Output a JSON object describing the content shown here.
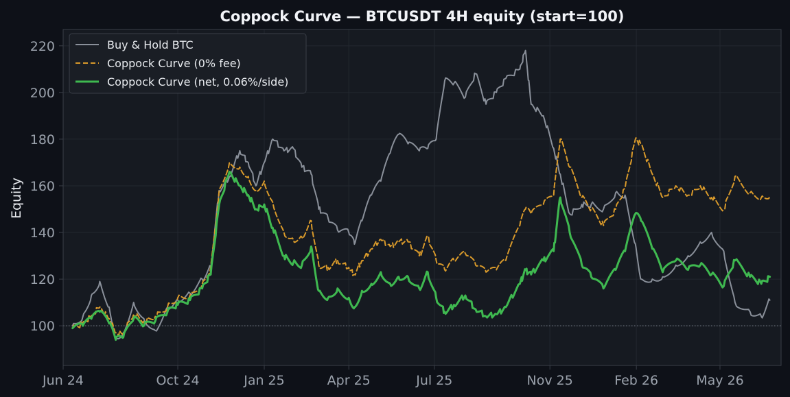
{
  "chart_data": {
    "type": "line",
    "title": "Coppock Curve — BTCUSDT 4H equity (start=100)",
    "xlabel": "",
    "ylabel": "Equity",
    "ylim": [
      83,
      227
    ],
    "yticks": [
      100,
      120,
      140,
      160,
      180,
      200,
      220
    ],
    "xticks": [
      "Jun 24",
      "Oct 24",
      "Jan 25",
      "Apr 25",
      "Jul 25",
      "Nov 25",
      "Feb 26",
      "May 26"
    ],
    "baseline": 100,
    "grid": true,
    "legend": "top-left",
    "colors": {
      "background": "#0e1118",
      "plot_background": "#161a21",
      "grid": "#232830",
      "axes": "#3a3f48",
      "baseline": "#7d848e"
    },
    "x_axis": {
      "start": "2024-06-01",
      "end": "2026-07-05",
      "tick_dates": [
        "2024-06-01",
        "2024-10-01",
        "2025-01-01",
        "2025-04-01",
        "2025-07-01",
        "2025-11-01",
        "2026-02-01",
        "2026-05-01"
      ]
    },
    "series": [
      {
        "name": "Buy & Hold BTC",
        "color": "#8a909a",
        "dash": "solid",
        "width": 2,
        "points": [
          [
            "2024-06-11",
            100
          ],
          [
            "2024-06-22",
            104
          ],
          [
            "2024-07-01",
            113
          ],
          [
            "2024-07-10",
            119
          ],
          [
            "2024-07-20",
            108
          ],
          [
            "2024-07-27",
            95
          ],
          [
            "2024-08-04",
            97
          ],
          [
            "2024-08-15",
            110
          ],
          [
            "2024-08-26",
            103
          ],
          [
            "2024-09-07",
            98
          ],
          [
            "2024-09-20",
            108
          ],
          [
            "2024-10-01",
            111
          ],
          [
            "2024-10-14",
            114
          ],
          [
            "2024-10-27",
            120
          ],
          [
            "2024-11-05",
            125
          ],
          [
            "2024-11-14",
            158
          ],
          [
            "2024-11-25",
            164
          ],
          [
            "2024-12-06",
            175
          ],
          [
            "2024-12-15",
            170
          ],
          [
            "2024-12-23",
            160
          ],
          [
            "2025-01-01",
            170
          ],
          [
            "2025-01-10",
            180
          ],
          [
            "2025-01-22",
            175
          ],
          [
            "2025-02-01",
            176
          ],
          [
            "2025-02-10",
            168
          ],
          [
            "2025-02-20",
            165
          ],
          [
            "2025-02-28",
            150
          ],
          [
            "2025-03-10",
            146
          ],
          [
            "2025-03-20",
            141
          ],
          [
            "2025-04-01",
            140
          ],
          [
            "2025-04-07",
            135
          ],
          [
            "2025-04-15",
            145
          ],
          [
            "2025-04-25",
            156
          ],
          [
            "2025-05-05",
            162
          ],
          [
            "2025-05-15",
            174
          ],
          [
            "2025-05-24",
            182
          ],
          [
            "2025-06-03",
            178
          ],
          [
            "2025-06-15",
            175
          ],
          [
            "2025-06-24",
            176
          ],
          [
            "2025-07-03",
            180
          ],
          [
            "2025-07-12",
            205
          ],
          [
            "2025-07-22",
            204
          ],
          [
            "2025-08-03",
            198
          ],
          [
            "2025-08-14",
            208
          ],
          [
            "2025-08-25",
            195
          ],
          [
            "2025-09-05",
            200
          ],
          [
            "2025-09-15",
            206
          ],
          [
            "2025-09-30",
            210
          ],
          [
            "2025-10-06",
            218
          ],
          [
            "2025-10-12",
            195
          ],
          [
            "2025-10-25",
            190
          ],
          [
            "2025-11-05",
            176
          ],
          [
            "2025-11-12",
            165
          ],
          [
            "2025-11-22",
            148
          ],
          [
            "2025-12-05",
            152
          ],
          [
            "2025-12-15",
            152
          ],
          [
            "2025-12-28",
            150
          ],
          [
            "2026-01-10",
            157
          ],
          [
            "2026-01-20",
            156
          ],
          [
            "2026-01-31",
            135
          ],
          [
            "2026-02-06",
            120
          ],
          [
            "2026-02-18",
            120
          ],
          [
            "2026-03-01",
            121
          ],
          [
            "2026-03-15",
            126
          ],
          [
            "2026-03-28",
            130
          ],
          [
            "2026-04-10",
            136
          ],
          [
            "2026-04-22",
            140
          ],
          [
            "2026-05-05",
            132
          ],
          [
            "2026-05-17",
            110
          ],
          [
            "2026-06-02",
            106
          ],
          [
            "2026-06-14",
            104
          ],
          [
            "2026-06-23",
            111
          ]
        ]
      },
      {
        "name": "Coppock Curve (0% fee)",
        "color": "#d99a2b",
        "dash": "dashed",
        "width": 2,
        "points": [
          [
            "2024-06-11",
            99
          ],
          [
            "2024-06-22",
            101
          ],
          [
            "2024-07-01",
            104
          ],
          [
            "2024-07-10",
            108
          ],
          [
            "2024-07-20",
            103
          ],
          [
            "2024-07-27",
            97
          ],
          [
            "2024-08-04",
            97
          ],
          [
            "2024-08-15",
            105
          ],
          [
            "2024-08-26",
            102
          ],
          [
            "2024-09-07",
            104
          ],
          [
            "2024-09-20",
            108
          ],
          [
            "2024-10-01",
            112
          ],
          [
            "2024-10-14",
            113
          ],
          [
            "2024-10-27",
            118
          ],
          [
            "2024-11-05",
            125
          ],
          [
            "2024-11-14",
            158
          ],
          [
            "2024-11-25",
            170
          ],
          [
            "2024-12-06",
            168
          ],
          [
            "2024-12-15",
            164
          ],
          [
            "2024-12-23",
            158
          ],
          [
            "2025-01-01",
            162
          ],
          [
            "2025-01-10",
            153
          ],
          [
            "2025-01-22",
            140
          ],
          [
            "2025-02-01",
            137
          ],
          [
            "2025-02-10",
            138
          ],
          [
            "2025-02-20",
            145
          ],
          [
            "2025-02-28",
            126
          ],
          [
            "2025-03-10",
            125
          ],
          [
            "2025-03-20",
            128
          ],
          [
            "2025-04-01",
            125
          ],
          [
            "2025-04-07",
            122
          ],
          [
            "2025-04-15",
            128
          ],
          [
            "2025-04-25",
            133
          ],
          [
            "2025-05-05",
            137
          ],
          [
            "2025-05-15",
            134
          ],
          [
            "2025-05-24",
            136
          ],
          [
            "2025-06-03",
            136
          ],
          [
            "2025-06-15",
            130
          ],
          [
            "2025-06-24",
            138
          ],
          [
            "2025-07-03",
            128
          ],
          [
            "2025-07-12",
            124
          ],
          [
            "2025-07-22",
            128
          ],
          [
            "2025-08-03",
            131
          ],
          [
            "2025-08-14",
            126
          ],
          [
            "2025-08-25",
            123
          ],
          [
            "2025-09-05",
            124
          ],
          [
            "2025-09-15",
            128
          ],
          [
            "2025-09-30",
            143
          ],
          [
            "2025-10-06",
            150
          ],
          [
            "2025-10-12",
            148
          ],
          [
            "2025-10-25",
            152
          ],
          [
            "2025-11-05",
            156
          ],
          [
            "2025-11-12",
            180
          ],
          [
            "2025-11-22",
            168
          ],
          [
            "2025-12-05",
            155
          ],
          [
            "2025-12-15",
            150
          ],
          [
            "2025-12-28",
            143
          ],
          [
            "2026-01-10",
            150
          ],
          [
            "2026-01-20",
            159
          ],
          [
            "2026-01-31",
            180
          ],
          [
            "2026-02-06",
            178
          ],
          [
            "2026-02-18",
            165
          ],
          [
            "2026-03-01",
            155
          ],
          [
            "2026-03-15",
            160
          ],
          [
            "2026-03-28",
            156
          ],
          [
            "2026-04-10",
            160
          ],
          [
            "2026-04-22",
            155
          ],
          [
            "2026-05-05",
            150
          ],
          [
            "2026-05-17",
            164
          ],
          [
            "2026-06-02",
            157
          ],
          [
            "2026-06-14",
            155
          ],
          [
            "2026-06-23",
            156
          ]
        ]
      },
      {
        "name": "Coppock Curve (net, 0.06%/side)",
        "color": "#3fb950",
        "dash": "solid",
        "width": 3,
        "points": [
          [
            "2024-06-11",
            99
          ],
          [
            "2024-06-22",
            100
          ],
          [
            "2024-07-01",
            103
          ],
          [
            "2024-07-10",
            106
          ],
          [
            "2024-07-20",
            101
          ],
          [
            "2024-07-27",
            94
          ],
          [
            "2024-08-04",
            95
          ],
          [
            "2024-08-15",
            103
          ],
          [
            "2024-08-26",
            100
          ],
          [
            "2024-09-07",
            102
          ],
          [
            "2024-09-20",
            106
          ],
          [
            "2024-10-01",
            109
          ],
          [
            "2024-10-14",
            111
          ],
          [
            "2024-10-27",
            116
          ],
          [
            "2024-11-05",
            122
          ],
          [
            "2024-11-14",
            152
          ],
          [
            "2024-11-25",
            166
          ],
          [
            "2024-12-06",
            160
          ],
          [
            "2024-12-15",
            156
          ],
          [
            "2024-12-23",
            150
          ],
          [
            "2025-01-01",
            152
          ],
          [
            "2025-01-10",
            142
          ],
          [
            "2025-01-22",
            130
          ],
          [
            "2025-02-01",
            127
          ],
          [
            "2025-02-10",
            126
          ],
          [
            "2025-02-20",
            134
          ],
          [
            "2025-02-28",
            115
          ],
          [
            "2025-03-10",
            112
          ],
          [
            "2025-03-20",
            116
          ],
          [
            "2025-04-01",
            112
          ],
          [
            "2025-04-07",
            108
          ],
          [
            "2025-04-15",
            115
          ],
          [
            "2025-04-25",
            118
          ],
          [
            "2025-05-05",
            123
          ],
          [
            "2025-05-15",
            118
          ],
          [
            "2025-05-24",
            121
          ],
          [
            "2025-06-03",
            121
          ],
          [
            "2025-06-15",
            116
          ],
          [
            "2025-06-24",
            123
          ],
          [
            "2025-07-03",
            112
          ],
          [
            "2025-07-12",
            106
          ],
          [
            "2025-07-22",
            109
          ],
          [
            "2025-08-03",
            113
          ],
          [
            "2025-08-14",
            107
          ],
          [
            "2025-08-25",
            104
          ],
          [
            "2025-09-05",
            105
          ],
          [
            "2025-09-15",
            108
          ],
          [
            "2025-09-30",
            118
          ],
          [
            "2025-10-06",
            124
          ],
          [
            "2025-10-12",
            122
          ],
          [
            "2025-10-25",
            128
          ],
          [
            "2025-11-05",
            132
          ],
          [
            "2025-11-12",
            155
          ],
          [
            "2025-11-22",
            140
          ],
          [
            "2025-12-05",
            126
          ],
          [
            "2025-12-15",
            121
          ],
          [
            "2025-12-28",
            116
          ],
          [
            "2026-01-10",
            124
          ],
          [
            "2026-01-20",
            132
          ],
          [
            "2026-01-31",
            148
          ],
          [
            "2026-02-06",
            145
          ],
          [
            "2026-02-18",
            133
          ],
          [
            "2026-03-01",
            123
          ],
          [
            "2026-03-15",
            128
          ],
          [
            "2026-03-28",
            124
          ],
          [
            "2026-04-10",
            126
          ],
          [
            "2026-04-22",
            122
          ],
          [
            "2026-05-05",
            117
          ],
          [
            "2026-05-17",
            128
          ],
          [
            "2026-06-02",
            121
          ],
          [
            "2026-06-14",
            118
          ],
          [
            "2026-06-23",
            121
          ]
        ]
      }
    ]
  }
}
